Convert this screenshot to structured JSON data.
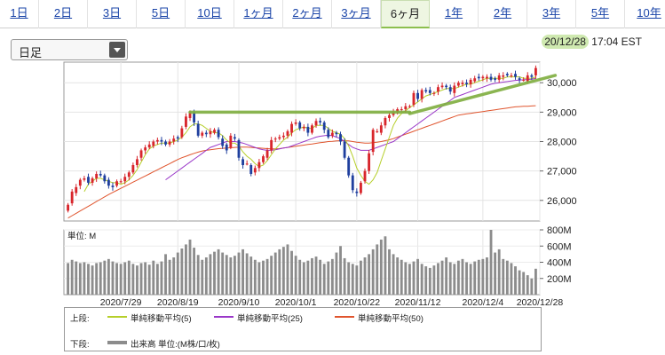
{
  "tabs": [
    {
      "label": "1日"
    },
    {
      "label": "2日"
    },
    {
      "label": "3日"
    },
    {
      "label": "5日"
    },
    {
      "label": "10日"
    },
    {
      "label": "1ヶ月"
    },
    {
      "label": "2ヶ月"
    },
    {
      "label": "3ヶ月"
    },
    {
      "label": "6ヶ月"
    },
    {
      "label": "1年"
    },
    {
      "label": "2年"
    },
    {
      "label": "3年"
    },
    {
      "label": "5年"
    },
    {
      "label": "10年"
    }
  ],
  "active_tab": "6ヶ月",
  "interval_select": {
    "value": "日足"
  },
  "timestamp": {
    "date": "20/12/28",
    "time": "17:04 EST"
  },
  "legend": {
    "upper_tier": "上段:",
    "lower_tier": "下段:",
    "ma5": "単純移動平均(5)",
    "ma25": "単純移動平均(25)",
    "ma50": "単純移動平均(50)",
    "volume": "出来高 単位:(M株/口/枚)"
  },
  "colors": {
    "up": "#d8262c",
    "down": "#1f3f9e",
    "ma5": "#b6cf2a",
    "ma25": "#9a37c8",
    "ma50": "#e0552e",
    "volume": "#8c8c8c",
    "annotation": "#7fae3f",
    "highlight": "#cfe9b0"
  },
  "chart_data": {
    "type": "candlestick",
    "price_axis": {
      "ticks": [
        "26,000",
        "27,000",
        "28,000",
        "29,000",
        "30,000"
      ],
      "range": [
        25300,
        30700
      ]
    },
    "volume_axis": {
      "unit_label": "単位: M",
      "ticks": [
        "200M",
        "400M",
        "600M",
        "800M"
      ],
      "range": [
        0,
        800
      ]
    },
    "x_ticks": [
      {
        "label": "2020/7/29",
        "index": 13
      },
      {
        "label": "2020/8/19",
        "index": 27
      },
      {
        "label": "2020/9/10",
        "index": 42
      },
      {
        "label": "2020/10/1",
        "index": 56
      },
      {
        "label": "2020/10/22",
        "index": 71
      },
      {
        "label": "2020/11/12",
        "index": 86
      },
      {
        "label": "2020/12/4",
        "index": 102
      },
      {
        "label": "2020/12/28",
        "index": 116
      }
    ],
    "closes": [
      25850,
      26300,
      26450,
      26700,
      26750,
      26600,
      26750,
      26900,
      26850,
      26650,
      26500,
      26450,
      26650,
      26650,
      26800,
      26950,
      27200,
      27400,
      27700,
      27800,
      27900,
      28000,
      28050,
      28000,
      27900,
      28000,
      28100,
      28100,
      28450,
      28850,
      29000,
      28650,
      28200,
      28300,
      28250,
      28350,
      28400,
      28150,
      27850,
      27700,
      28200,
      28100,
      27450,
      27200,
      27250,
      26900,
      27100,
      27300,
      27500,
      27700,
      28050,
      28100,
      28150,
      28200,
      28350,
      28600,
      28650,
      28450,
      28500,
      28300,
      28550,
      28700,
      28650,
      28400,
      28150,
      28300,
      28250,
      28000,
      27450,
      26850,
      26350,
      26250,
      26600,
      27000,
      27600,
      28400,
      28350,
      28550,
      28800,
      28900,
      29000,
      29100,
      29100,
      29200,
      29200,
      29650,
      29450,
      29750,
      29700,
      29650,
      29650,
      29850,
      29900,
      29850,
      29700,
      29900,
      30000,
      30000,
      29950,
      30100,
      30150,
      30150,
      30200,
      30200,
      30100,
      30100,
      30250,
      30250,
      30250,
      30250,
      30200,
      30100,
      30100,
      30250,
      30200,
      30500
    ],
    "opens": [
      25650,
      25900,
      26250,
      26500,
      26700,
      26800,
      26600,
      26750,
      26900,
      26850,
      26700,
      26500,
      26500,
      26650,
      26650,
      26800,
      26950,
      27200,
      27450,
      27700,
      27800,
      27850,
      28000,
      28050,
      28000,
      27900,
      28000,
      28150,
      28150,
      28500,
      28800,
      29000,
      28600,
      28200,
      28300,
      28250,
      28300,
      28400,
      28100,
      27900,
      27800,
      28150,
      28050,
      27400,
      27250,
      27200,
      26950,
      27100,
      27300,
      27450,
      27700,
      28100,
      28100,
      28150,
      28200,
      28300,
      28600,
      28650,
      28450,
      28500,
      28300,
      28550,
      28700,
      28650,
      28400,
      28200,
      28300,
      28250,
      28000,
      27450,
      26850,
      26300,
      26250,
      26650,
      27000,
      27650,
      28350,
      28300,
      28550,
      28800,
      28900,
      29000,
      29100,
      29100,
      29200,
      29250,
      29650,
      29450,
      29750,
      29750,
      29650,
      29700,
      29850,
      29900,
      29850,
      29650,
      29900,
      29950,
      30000,
      29950,
      30050,
      30200,
      30150,
      30150,
      30200,
      30150,
      30100,
      30200,
      30300,
      30250,
      30300,
      30150,
      30100,
      30050,
      30250,
      30250
    ],
    "ma5": [
      null,
      null,
      null,
      null,
      26300,
      26550,
      26650,
      26750,
      26750,
      26700,
      26650,
      26600,
      26600,
      26550,
      26600,
      26700,
      26850,
      27050,
      27300,
      27550,
      27750,
      27850,
      27900,
      27950,
      27950,
      27950,
      28000,
      28050,
      28150,
      28300,
      28500,
      28600,
      28600,
      28550,
      28450,
      28350,
      28300,
      28300,
      28200,
      28050,
      27950,
      27950,
      27850,
      27650,
      27500,
      27400,
      27250,
      27150,
      27200,
      27350,
      27550,
      27750,
      27900,
      28050,
      28150,
      28300,
      28400,
      28450,
      28500,
      28450,
      28450,
      28550,
      28550,
      28550,
      28450,
      28350,
      28300,
      28250,
      28100,
      27850,
      27500,
      27100,
      26850,
      26650,
      26550,
      26700,
      26950,
      27350,
      27750,
      28150,
      28550,
      28800,
      28950,
      29050,
      29150,
      29250,
      29350,
      29450,
      29550,
      29600,
      29650,
      29700,
      29750,
      29800,
      29800,
      29800,
      29850,
      29900,
      29950,
      29950,
      30000,
      30050,
      30100,
      30150,
      30150,
      30150,
      30150,
      30150,
      30200,
      30200,
      30200,
      30200,
      30150,
      30150,
      30150,
      30200
    ],
    "ma25": [
      null,
      null,
      null,
      null,
      null,
      null,
      null,
      null,
      null,
      null,
      null,
      null,
      null,
      null,
      null,
      null,
      null,
      null,
      null,
      null,
      null,
      null,
      null,
      null,
      26700,
      26800,
      26900,
      27000,
      27100,
      27200,
      27300,
      27400,
      27500,
      27600,
      27700,
      27800,
      27850,
      27900,
      27950,
      28000,
      28000,
      28000,
      27980,
      27950,
      27900,
      27850,
      27800,
      27750,
      27720,
      27700,
      27700,
      27720,
      27750,
      27780,
      27800,
      27850,
      27900,
      27950,
      28000,
      28050,
      28100,
      28150,
      28180,
      28200,
      28220,
      28200,
      28150,
      28100,
      28000,
      27900,
      27800,
      27750,
      27700,
      27700,
      27700,
      27750,
      27800,
      27850,
      27900,
      27950,
      28000,
      28100,
      28200,
      28300,
      28400,
      28500,
      28600,
      28700,
      28800,
      28900,
      29000,
      29100,
      29200,
      29300,
      29400,
      29500,
      29550,
      29600,
      29650,
      29700,
      29750,
      29800,
      29850,
      29900,
      29950,
      29980,
      30000,
      30020,
      30040,
      30060,
      30080,
      30090,
      30100,
      30110,
      30120,
      30150
    ],
    "ma50": [
      25400,
      25480,
      25560,
      25640,
      25720,
      25800,
      25880,
      25960,
      26040,
      26120,
      26200,
      26270,
      26340,
      26410,
      26480,
      26550,
      26620,
      26690,
      26760,
      26830,
      26900,
      26970,
      27040,
      27110,
      27180,
      27250,
      27320,
      27390,
      27450,
      27500,
      27550,
      27600,
      27640,
      27680,
      27700,
      27720,
      27740,
      27760,
      27770,
      27780,
      27790,
      27800,
      27810,
      27810,
      27810,
      27800,
      27790,
      27780,
      27770,
      27760,
      27750,
      27750,
      27760,
      27780,
      27800,
      27820,
      27840,
      27860,
      27880,
      27900,
      27920,
      27940,
      27960,
      27980,
      28000,
      28010,
      28020,
      28030,
      28030,
      28020,
      28000,
      27980,
      27960,
      27950,
      27950,
      27960,
      27980,
      28000,
      28030,
      28060,
      28100,
      28150,
      28200,
      28250,
      28300,
      28350,
      28400,
      28450,
      28500,
      28550,
      28600,
      28650,
      28700,
      28750,
      28800,
      28850,
      28900,
      28920,
      28940,
      28960,
      28980,
      29000,
      29020,
      29040,
      29060,
      29080,
      29100,
      29120,
      29140,
      29160,
      29180,
      29190,
      29200,
      29200,
      29210,
      29220
    ],
    "volume": [
      390,
      430,
      410,
      390,
      400,
      380,
      360,
      390,
      400,
      420,
      440,
      410,
      390,
      380,
      400,
      420,
      380,
      360,
      390,
      400,
      370,
      420,
      380,
      410,
      500,
      430,
      460,
      520,
      570,
      620,
      680,
      580,
      490,
      430,
      460,
      500,
      530,
      560,
      520,
      490,
      460,
      480,
      520,
      560,
      510,
      470,
      430,
      400,
      420,
      440,
      480,
      520,
      560,
      590,
      620,
      540,
      480,
      430,
      400,
      420,
      450,
      470,
      430,
      380,
      410,
      440,
      520,
      600,
      450,
      400,
      380,
      360,
      420,
      460,
      500,
      560,
      620,
      680,
      720,
      560,
      500,
      460,
      430,
      400,
      380,
      410,
      440,
      380,
      350,
      330,
      360,
      390,
      420,
      460,
      400,
      380,
      420,
      440,
      400,
      380,
      410,
      430,
      440,
      460,
      800,
      520,
      560,
      440,
      420,
      390,
      350,
      300,
      280,
      240,
      200,
      320
    ]
  }
}
